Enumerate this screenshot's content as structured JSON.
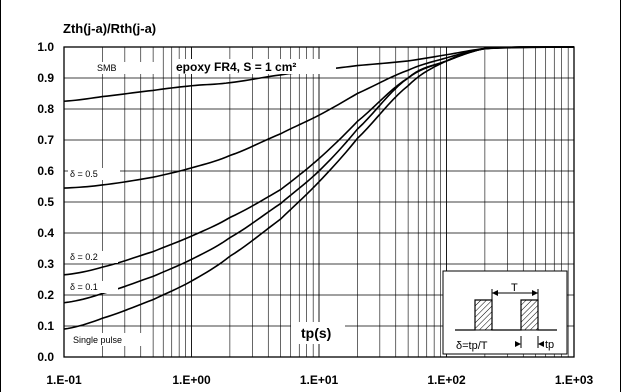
{
  "chart_data": {
    "type": "line",
    "title": "",
    "ylabel": "Zth(j-a)/Rth(j-a)",
    "xlabel": "tp(s)",
    "x_scale": "log",
    "xlim": [
      0.1,
      1000
    ],
    "ylim": [
      0,
      1.0
    ],
    "grid": true,
    "x_tick_labels": [
      "1.E-01",
      "1.E+00",
      "1.E+01",
      "1.E+02",
      "1.E+03"
    ],
    "y_tick_labels": [
      "0.0",
      "0.1",
      "0.2",
      "0.3",
      "0.4",
      "0.5",
      "0.6",
      "0.7",
      "0.8",
      "0.9",
      "1.0"
    ],
    "condition_label": "epoxy FR4, S = 1 cm²",
    "series": [
      {
        "name": "SMB",
        "x": [
          0.1,
          0.2,
          0.5,
          1,
          2,
          5,
          10,
          20,
          50,
          100,
          200,
          1000
        ],
        "y": [
          0.825,
          0.84,
          0.86,
          0.875,
          0.885,
          0.91,
          0.925,
          0.94,
          0.955,
          0.975,
          0.995,
          1.0
        ]
      },
      {
        "name": "δ = 0.5",
        "x": [
          0.1,
          0.2,
          0.5,
          1,
          2,
          5,
          10,
          20,
          50,
          100,
          200,
          1000
        ],
        "y": [
          0.545,
          0.555,
          0.58,
          0.61,
          0.65,
          0.72,
          0.78,
          0.85,
          0.925,
          0.965,
          0.995,
          1.0
        ]
      },
      {
        "name": "δ = 0.2",
        "x": [
          0.1,
          0.2,
          0.5,
          1,
          2,
          5,
          10,
          20,
          50,
          100,
          200,
          1000
        ],
        "y": [
          0.265,
          0.29,
          0.34,
          0.39,
          0.45,
          0.54,
          0.64,
          0.76,
          0.9,
          0.955,
          0.995,
          1.0
        ]
      },
      {
        "name": "δ = 0.1",
        "x": [
          0.1,
          0.2,
          0.5,
          1,
          2,
          5,
          10,
          20,
          50,
          100,
          200,
          1000
        ],
        "y": [
          0.175,
          0.205,
          0.26,
          0.315,
          0.385,
          0.495,
          0.6,
          0.735,
          0.9,
          0.955,
          0.995,
          1.0
        ]
      },
      {
        "name": "Single pulse",
        "x": [
          0.1,
          0.2,
          0.5,
          1,
          2,
          5,
          10,
          20,
          50,
          100,
          200,
          1000
        ],
        "y": [
          0.09,
          0.125,
          0.185,
          0.245,
          0.325,
          0.445,
          0.565,
          0.705,
          0.875,
          0.955,
          0.995,
          1.0
        ]
      }
    ],
    "inset": {
      "period_label": "T",
      "formula_label": "δ=tp/T",
      "pulse_label": "tp"
    }
  }
}
